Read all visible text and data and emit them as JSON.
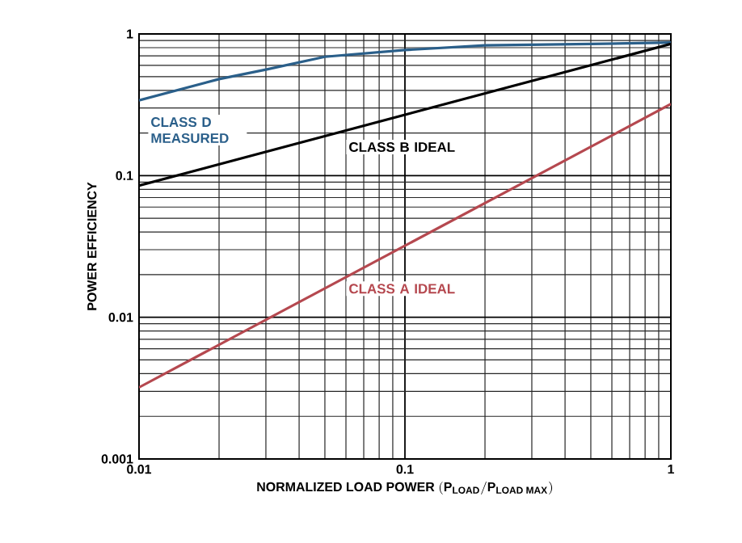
{
  "chart_data": {
    "type": "line",
    "xlabel": "\\text{NORMALIZED LOAD POWER }(\\text{P}_{\\text{LOAD}}/\\text{P}_{\\text{LOAD MAX}})",
    "ylabel": "POWER EFFICIENCY",
    "log": "xy",
    "grid": true,
    "legend": false,
    "marker": "none",
    "line_style": "solid",
    "xlim": [
      0.01,
      1
    ],
    "ylim": [
      0.001,
      1
    ],
    "xticks": [
      0.01,
      0.1,
      1
    ],
    "yticks": [
      0.001,
      0.01,
      0.1,
      1
    ],
    "series": [
      {
        "name": "CLASS D MEASURED",
        "color": "#2a5f8a",
        "x": [
          0.01,
          0.02,
          0.03,
          0.05,
          0.1,
          0.2,
          0.5,
          1
        ],
        "values": [
          0.34,
          0.48,
          0.56,
          0.69,
          0.77,
          0.83,
          0.85,
          0.87
        ]
      },
      {
        "name": "CLASS B IDEAL",
        "color": "#000000",
        "x": [
          0.01,
          1
        ],
        "values": [
          0.085,
          0.85
        ]
      },
      {
        "name": "CLASS A IDEAL",
        "color": "#b5484f",
        "x": [
          0.01,
          1
        ],
        "values": [
          0.0032,
          0.32
        ]
      }
    ]
  }
}
